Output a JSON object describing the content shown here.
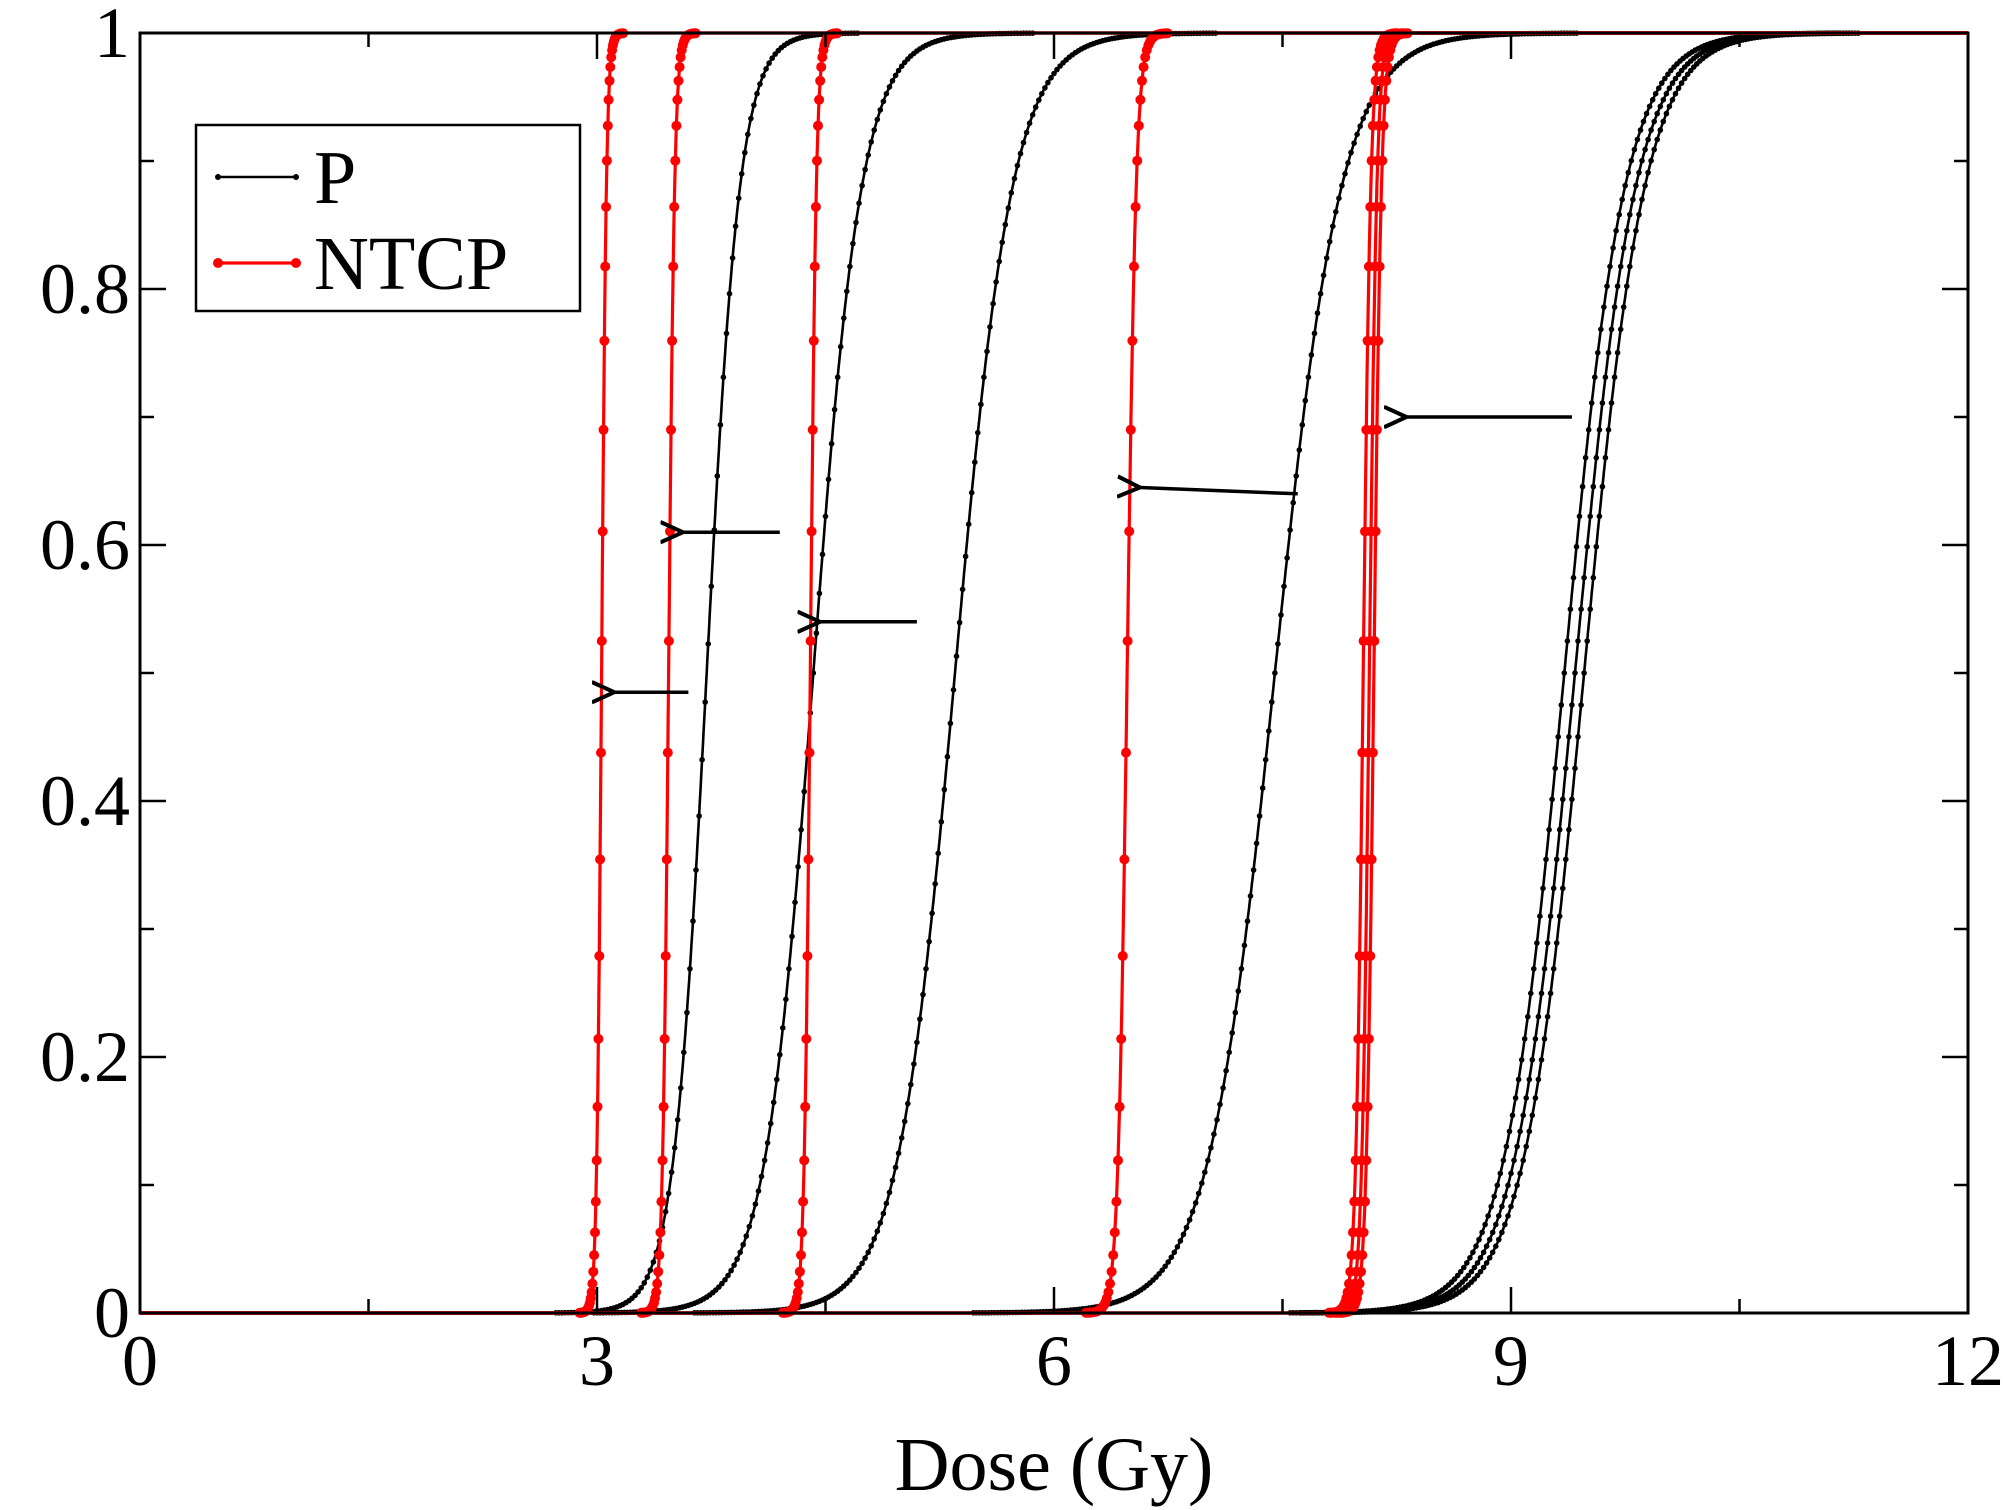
{
  "chart_data": {
    "type": "line",
    "title": "",
    "xlabel": "Dose (Gy)",
    "ylabel": "",
    "xlim": [
      0,
      12
    ],
    "ylim": [
      0,
      1
    ],
    "x_major_ticks": [
      0,
      3,
      6,
      9,
      12
    ],
    "x_minor_step": 1.5,
    "y_major_ticks": [
      0,
      0.2,
      0.4,
      0.6,
      0.8,
      1
    ],
    "y_minor_step": 0.1,
    "x_tick_labels": [
      "0",
      "3",
      "6",
      "9",
      "12"
    ],
    "y_tick_labels": [
      "0",
      "0.2",
      "0.4",
      "0.6",
      "0.8",
      "1"
    ],
    "grid": false,
    "legend_position": "top-left",
    "legend": [
      {
        "label": "P",
        "color": "#000000"
      },
      {
        "label": "NTCP",
        "color": "#ff0000"
      }
    ],
    "curve_model": "sigmoid: y = 1/(1+exp(-(x - d50)/width))",
    "series": [
      {
        "group": "P",
        "color": "#000000",
        "d50": 3.72,
        "width": 0.11
      },
      {
        "group": "P",
        "color": "#000000",
        "d50": 4.42,
        "width": 0.16
      },
      {
        "group": "P",
        "color": "#000000",
        "d50": 5.35,
        "width": 0.19
      },
      {
        "group": "P",
        "color": "#000000",
        "d50": 7.45,
        "width": 0.22
      },
      {
        "group": "P",
        "color": "#000000",
        "d50": 9.35,
        "width": 0.2
      },
      {
        "group": "P",
        "color": "#000000",
        "d50": 9.42,
        "width": 0.2
      },
      {
        "group": "P",
        "color": "#000000",
        "d50": 9.48,
        "width": 0.2
      },
      {
        "group": "NTCP",
        "color": "#ff0000",
        "d50": 3.03,
        "width": 0.016
      },
      {
        "group": "NTCP",
        "color": "#ff0000",
        "d50": 3.47,
        "width": 0.02
      },
      {
        "group": "NTCP",
        "color": "#ff0000",
        "d50": 4.4,
        "width": 0.02
      },
      {
        "group": "NTCP",
        "color": "#ff0000",
        "d50": 6.48,
        "width": 0.03
      },
      {
        "group": "NTCP",
        "color": "#ff0000",
        "d50": 8.03,
        "width": 0.025
      },
      {
        "group": "NTCP",
        "color": "#ff0000",
        "d50": 8.07,
        "width": 0.025
      },
      {
        "group": "NTCP",
        "color": "#ff0000",
        "d50": 8.1,
        "width": 0.025
      }
    ],
    "annotations": [
      {
        "type": "arrow",
        "from": [
          3.6,
          0.485
        ],
        "to": [
          3.1,
          0.485
        ]
      },
      {
        "type": "arrow",
        "from": [
          4.2,
          0.61
        ],
        "to": [
          3.55,
          0.61
        ]
      },
      {
        "type": "arrow",
        "from": [
          5.1,
          0.54
        ],
        "to": [
          4.45,
          0.54
        ]
      },
      {
        "type": "arrow",
        "from": [
          7.6,
          0.64
        ],
        "to": [
          6.55,
          0.645
        ]
      },
      {
        "type": "arrow",
        "from": [
          9.4,
          0.7
        ],
        "to": [
          8.3,
          0.7
        ]
      }
    ]
  }
}
